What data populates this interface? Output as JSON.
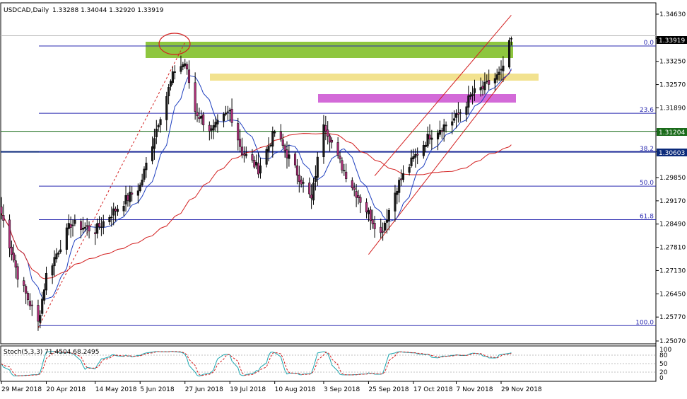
{
  "title": {
    "symbol": "USDCAD,Daily",
    "ohlc": "1.33288 1.34044 1.32920 1.33919"
  },
  "stoch": {
    "label": "Stoch(5,3,3) 71.4504 68.2495",
    "levels": [
      "100",
      "80",
      "50",
      "20",
      "0"
    ]
  },
  "price_labels": {
    "current": "1.33919",
    "line1": "1.31204",
    "line2": "1.30603"
  },
  "fibonacci": [
    {
      "label": "0.0",
      "price": 1.337
    },
    {
      "label": "23.6",
      "price": 1.3173
    },
    {
      "label": "38.2",
      "price": 1.306
    },
    {
      "label": "50.0",
      "price": 1.296
    },
    {
      "label": "61.8",
      "price": 1.2862
    },
    {
      "label": "100.0",
      "price": 1.2552
    }
  ],
  "colors": {
    "bull_candle": "#1a1a1a",
    "bear_candle": "#b0307a",
    "ma_fast": "#1e3fbf",
    "ma_slow": "#d32020",
    "fib": "#2a2ab0",
    "green_zone": "#8ec63f",
    "yellow_zone": "#f2e28f",
    "magenta_zone": "#d36ad8",
    "hline_green": "#1a6b1a",
    "hline_navy": "#0b2a7a"
  },
  "chart_data": {
    "type": "candlestick",
    "title": "USDCAD,Daily",
    "ylim": [
      1.2507,
      1.3463
    ],
    "y_ticks": [
      "1.34630",
      "1.33919",
      "1.33250",
      "1.32570",
      "1.31890",
      "1.31204",
      "1.30603",
      "1.29850",
      "1.29170",
      "1.28490",
      "1.27810",
      "1.27130",
      "1.26450",
      "1.25770",
      "1.25070"
    ],
    "x_ticks": [
      "29 Mar 2018",
      "20 Apr 2018",
      "14 May 2018",
      "5 Jun 2018",
      "27 Jun 2018",
      "19 Jul 2018",
      "10 Aug 2018",
      "3 Sep 2018",
      "25 Sep 2018",
      "17 Oct 2018",
      "7 Nov 2018",
      "29 Nov 2018"
    ],
    "close_anchors": [
      {
        "date": "29 Mar 2018",
        "price": 1.288
      },
      {
        "date": "6 Apr 2018",
        "price": 1.27
      },
      {
        "date": "16 Apr 2018",
        "price": 1.256
      },
      {
        "date": "20 Apr 2018",
        "price": 1.27
      },
      {
        "date": "2 May 2018",
        "price": 1.285
      },
      {
        "date": "14 May 2018",
        "price": 1.283
      },
      {
        "date": "22 May 2018",
        "price": 1.288
      },
      {
        "date": "5 Jun 2018",
        "price": 1.296
      },
      {
        "date": "14 Jun 2018",
        "price": 1.315
      },
      {
        "date": "22 Jun 2018",
        "price": 1.33
      },
      {
        "date": "27 Jun 2018",
        "price": 1.332
      },
      {
        "date": "2 Jul 2018",
        "price": 1.318
      },
      {
        "date": "10 Jul 2018",
        "price": 1.312
      },
      {
        "date": "19 Jul 2018",
        "price": 1.318
      },
      {
        "date": "25 Jul 2018",
        "price": 1.306
      },
      {
        "date": "2 Aug 2018",
        "price": 1.301
      },
      {
        "date": "10 Aug 2018",
        "price": 1.312
      },
      {
        "date": "20 Aug 2018",
        "price": 1.301
      },
      {
        "date": "28 Aug 2018",
        "price": 1.292
      },
      {
        "date": "3 Sep 2018",
        "price": 1.315
      },
      {
        "date": "10 Sep 2018",
        "price": 1.304
      },
      {
        "date": "18 Sep 2018",
        "price": 1.295
      },
      {
        "date": "25 Sep 2018",
        "price": 1.288
      },
      {
        "date": "1 Oct 2018",
        "price": 1.282
      },
      {
        "date": "9 Oct 2018",
        "price": 1.296
      },
      {
        "date": "17 Oct 2018",
        "price": 1.304
      },
      {
        "date": "25 Oct 2018",
        "price": 1.311
      },
      {
        "date": "7 Nov 2018",
        "price": 1.316
      },
      {
        "date": "15 Nov 2018",
        "price": 1.323
      },
      {
        "date": "21 Nov 2018",
        "price": 1.325
      },
      {
        "date": "29 Nov 2018",
        "price": 1.329
      },
      {
        "date": "4 Dec 2018",
        "price": 1.3392
      }
    ]
  }
}
